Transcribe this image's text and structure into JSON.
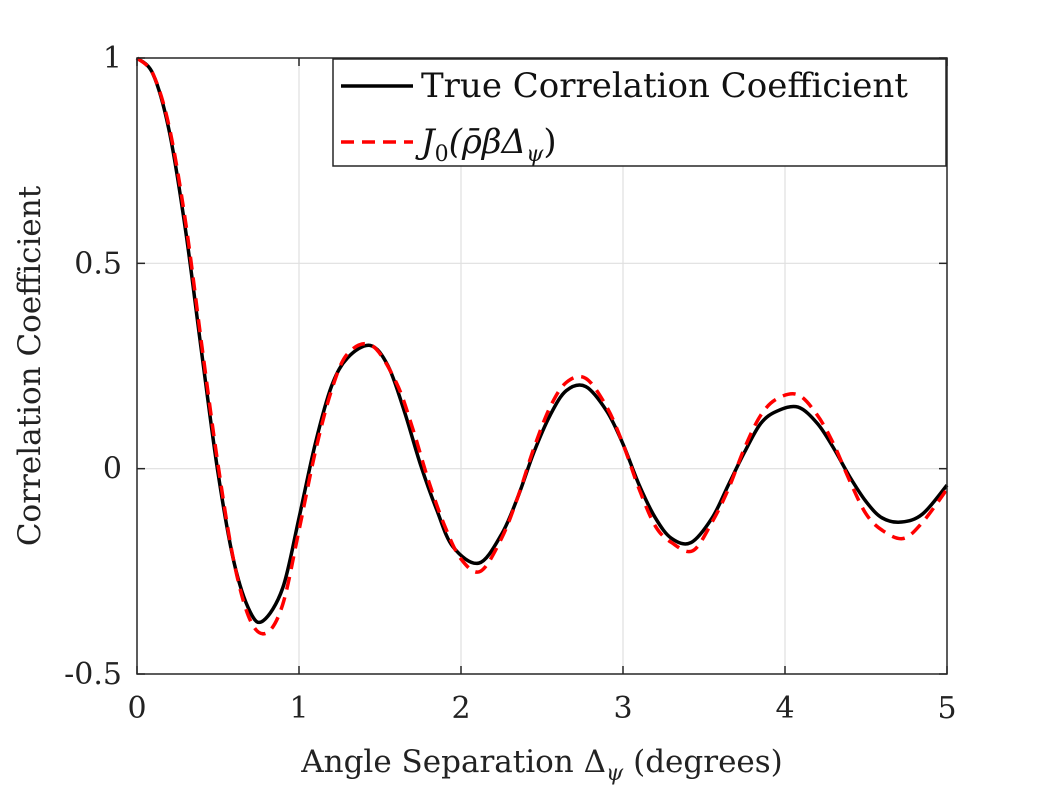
{
  "chart_data": {
    "type": "line",
    "title": "",
    "xlabel": "Angle Separation Δψ (degrees)",
    "xlabel_parts": {
      "main": "Angle Separation Δ",
      "sub": "ψ",
      "tail": " (degrees)"
    },
    "ylabel": "Correlation Coefficient",
    "xlim": [
      0,
      5
    ],
    "ylim": [
      -0.5,
      1
    ],
    "xticks": [
      0,
      1,
      2,
      3,
      4,
      5
    ],
    "xtick_labels": [
      "0",
      "1",
      "2",
      "3",
      "4",
      "5"
    ],
    "yticks": [
      -0.5,
      0,
      0.5,
      1
    ],
    "ytick_labels": [
      "-0.5",
      "0",
      "0.5",
      "1"
    ],
    "grid": true,
    "legend_position": "top-right",
    "series": [
      {
        "name": "True Correlation Coefficient",
        "color": "#000000",
        "style": "solid",
        "x": [
          0,
          0.1,
          0.2,
          0.3,
          0.4,
          0.5,
          0.6,
          0.7,
          0.78,
          0.9,
          1.0,
          1.1,
          1.2,
          1.3,
          1.44,
          1.55,
          1.65,
          1.75,
          1.85,
          1.95,
          2.11,
          2.25,
          2.35,
          2.45,
          2.55,
          2.65,
          2.77,
          2.9,
          3.0,
          3.1,
          3.2,
          3.3,
          3.42,
          3.55,
          3.65,
          3.75,
          3.85,
          3.95,
          4.08,
          4.2,
          4.3,
          4.4,
          4.5,
          4.6,
          4.72,
          4.85,
          5.0
        ],
        "values": [
          1.0,
          0.96,
          0.82,
          0.58,
          0.28,
          -0.01,
          -0.23,
          -0.35,
          -0.37,
          -0.29,
          -0.12,
          0.06,
          0.2,
          0.27,
          0.3,
          0.25,
          0.14,
          0.01,
          -0.1,
          -0.19,
          -0.23,
          -0.16,
          -0.07,
          0.04,
          0.13,
          0.19,
          0.2,
          0.14,
          0.06,
          -0.04,
          -0.12,
          -0.17,
          -0.18,
          -0.12,
          -0.04,
          0.04,
          0.11,
          0.14,
          0.15,
          0.11,
          0.05,
          -0.02,
          -0.08,
          -0.12,
          -0.13,
          -0.11,
          -0.04
        ]
      },
      {
        "name": "J0(ρ̄βΔψ)",
        "legend_parts": {
          "j": "J",
          "j_sub": "0",
          "arg": "(ρ̄βΔ",
          "arg_sub": "ψ",
          "close": ")"
        },
        "color": "#ff0000",
        "style": "dashed",
        "x": [
          0,
          0.1,
          0.2,
          0.3,
          0.4,
          0.5,
          0.6,
          0.7,
          0.8,
          0.9,
          1.0,
          1.1,
          1.2,
          1.3,
          1.45,
          1.6,
          1.7,
          1.8,
          1.9,
          2.0,
          2.12,
          2.25,
          2.35,
          2.45,
          2.55,
          2.65,
          2.77,
          2.9,
          3.0,
          3.1,
          3.2,
          3.3,
          3.43,
          3.55,
          3.65,
          3.75,
          3.85,
          3.95,
          4.08,
          4.2,
          4.3,
          4.4,
          4.5,
          4.6,
          4.73,
          4.85,
          5.0
        ],
        "values": [
          1.0,
          0.96,
          0.83,
          0.6,
          0.3,
          0.01,
          -0.23,
          -0.37,
          -0.4,
          -0.33,
          -0.15,
          0.04,
          0.19,
          0.28,
          0.3,
          0.21,
          0.1,
          -0.03,
          -0.14,
          -0.22,
          -0.25,
          -0.17,
          -0.07,
          0.05,
          0.15,
          0.21,
          0.22,
          0.15,
          0.06,
          -0.05,
          -0.14,
          -0.18,
          -0.2,
          -0.13,
          -0.05,
          0.05,
          0.13,
          0.17,
          0.18,
          0.13,
          0.06,
          -0.03,
          -0.11,
          -0.15,
          -0.17,
          -0.13,
          -0.05
        ]
      }
    ]
  }
}
